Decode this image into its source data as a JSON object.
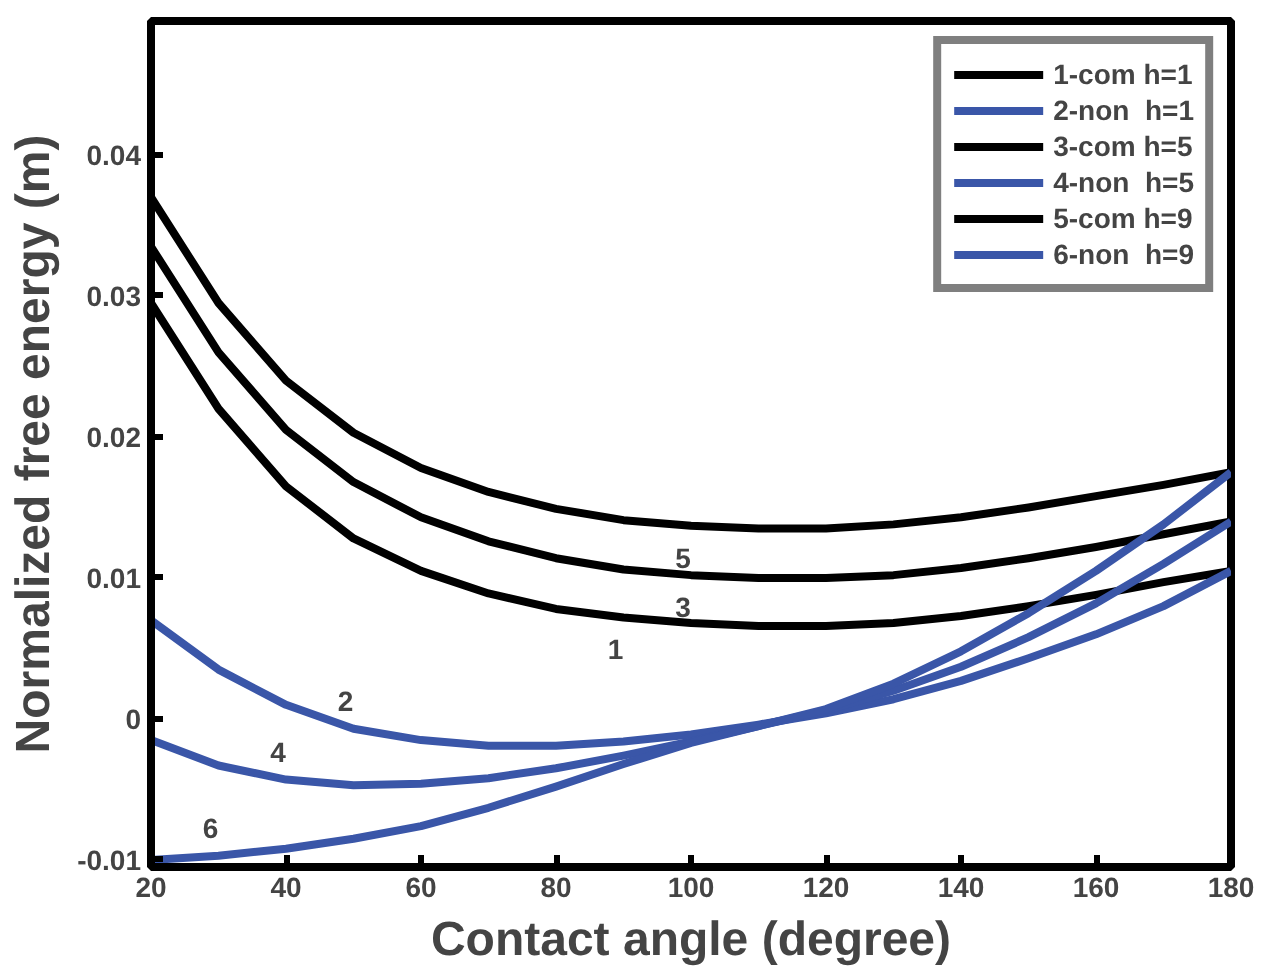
{
  "chart_data": {
    "type": "line",
    "xlabel": "Contact angle (degree)",
    "ylabel": "Normalized free energy (m)",
    "x": [
      20,
      30,
      40,
      50,
      60,
      70,
      80,
      90,
      100,
      110,
      120,
      130,
      140,
      150,
      160,
      170,
      180
    ],
    "series": [
      {
        "name": "1-com h=1",
        "color": "#000000",
        "values": [
          0.0295,
          0.022,
          0.0165,
          0.0128,
          0.0105,
          0.0089,
          0.0078,
          0.0072,
          0.0068,
          0.0066,
          0.0066,
          0.0068,
          0.0073,
          0.008,
          0.0088,
          0.0097,
          0.0105
        ]
      },
      {
        "name": "2-non  h=1",
        "color": "#3a56a8",
        "values": [
          0.007,
          0.0035,
          0.001,
          -0.0007,
          -0.0015,
          -0.0019,
          -0.0019,
          -0.0016,
          -0.0011,
          -0.0004,
          0.0004,
          0.0014,
          0.0027,
          0.0043,
          0.006,
          0.008,
          0.0105
        ]
      },
      {
        "name": "3-com h=5",
        "color": "#000000",
        "values": [
          0.0335,
          0.026,
          0.0205,
          0.0168,
          0.0143,
          0.0126,
          0.0114,
          0.0106,
          0.0102,
          0.01,
          0.01,
          0.0102,
          0.0107,
          0.0114,
          0.0122,
          0.0131,
          0.014
        ]
      },
      {
        "name": "4-non  h=5",
        "color": "#3a56a8",
        "values": [
          -0.0015,
          -0.0033,
          -0.0043,
          -0.0047,
          -0.0046,
          -0.0042,
          -0.0035,
          -0.0026,
          -0.0016,
          -0.0005,
          0.0006,
          0.002,
          0.0037,
          0.0058,
          0.0082,
          0.011,
          0.014
        ]
      },
      {
        "name": "5-com h=9",
        "color": "#000000",
        "values": [
          0.037,
          0.0295,
          0.024,
          0.0203,
          0.0178,
          0.0161,
          0.0149,
          0.0141,
          0.0137,
          0.0135,
          0.0135,
          0.0138,
          0.0143,
          0.015,
          0.0158,
          0.0166,
          0.0175
        ]
      },
      {
        "name": "6-non  h=9",
        "color": "#3a56a8",
        "values": [
          -0.01,
          -0.0097,
          -0.0092,
          -0.0085,
          -0.0076,
          -0.0063,
          -0.0048,
          -0.0032,
          -0.0017,
          -0.0005,
          0.0007,
          0.0025,
          0.0048,
          0.0075,
          0.0105,
          0.0138,
          0.0175
        ]
      }
    ],
    "annotations": [
      {
        "text": "5",
        "x": 100,
        "y": 0.0137
      },
      {
        "text": "3",
        "x": 100,
        "y": 0.0102
      },
      {
        "text": "1",
        "x": 90,
        "y": 0.0072
      },
      {
        "text": "2",
        "x": 50,
        "y": -0.0007
      },
      {
        "text": "4",
        "x": 40,
        "y": -0.0043
      },
      {
        "text": "6",
        "x": 30,
        "y": -0.0097
      }
    ],
    "xlim": [
      20,
      180
    ],
    "ylim": [
      -0.0105,
      0.0495
    ],
    "xticks": [
      20,
      40,
      60,
      80,
      100,
      120,
      140,
      160,
      180
    ],
    "yticks": [
      -0.01,
      0,
      0.01,
      0.02,
      0.03,
      0.04
    ],
    "grid": false,
    "legend": "top right",
    "line_style": "solid",
    "marker": "none"
  }
}
